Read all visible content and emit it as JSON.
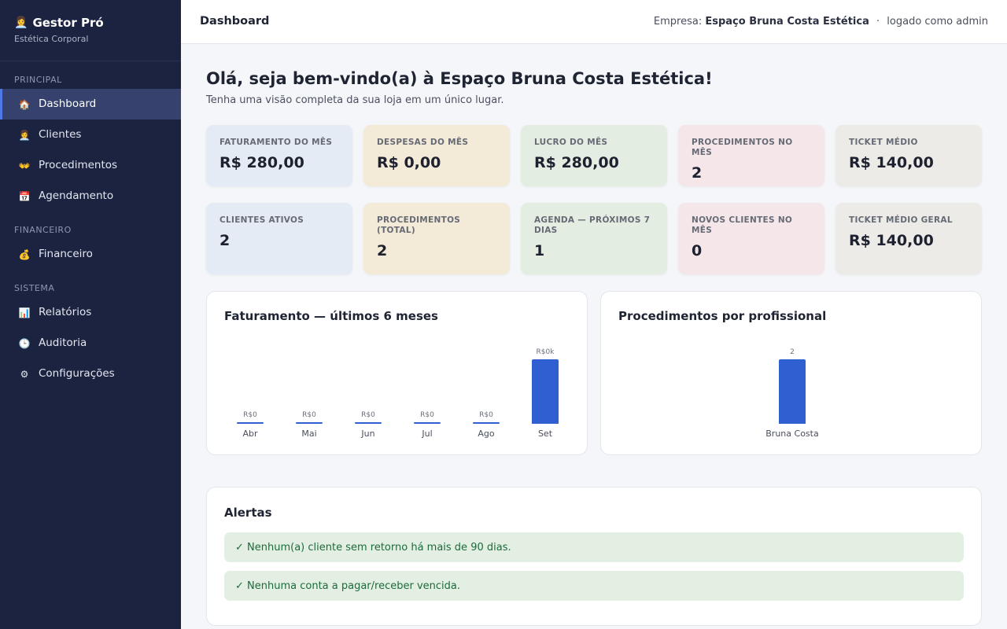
{
  "brand": {
    "icon": "👩‍💼",
    "title": "Gestor Pró",
    "subtitle": "Estética Corporal"
  },
  "sidebar": {
    "sections": [
      {
        "label": "PRINCIPAL"
      },
      {
        "label": "FINANCEIRO"
      },
      {
        "label": "SISTEMA"
      }
    ],
    "items": [
      {
        "label": "Dashboard",
        "icon": "🏠",
        "icon_name": "home-icon",
        "active": true
      },
      {
        "label": "Clientes",
        "icon": "👩‍💼",
        "icon_name": "clients-icon"
      },
      {
        "label": "Procedimentos",
        "icon": "👐",
        "icon_name": "procedures-icon"
      },
      {
        "label": "Agendamento",
        "icon": "📅",
        "icon_name": "calendar-icon"
      },
      {
        "label": "Financeiro",
        "icon": "💰",
        "icon_name": "money-bag-icon"
      },
      {
        "label": "Relatórios",
        "icon": "📊",
        "icon_name": "bar-chart-icon"
      },
      {
        "label": "Auditoria",
        "icon": "🕒",
        "icon_name": "clock-icon"
      },
      {
        "label": "Configurações",
        "icon": "⚙",
        "icon_name": "gear-icon"
      }
    ]
  },
  "topbar": {
    "title": "Dashboard",
    "company_prefix": "Empresa:",
    "company_name": "Espaço Bruna Costa Estética",
    "separator": "·",
    "logged_as": "logado como admin"
  },
  "welcome": {
    "title": "Olá, seja bem-vindo(a) à Espaço Bruna Costa Estética!",
    "subtitle": "Tenha uma visão completa da sua loja em um único lugar."
  },
  "stats_row1": [
    {
      "label": "FATURAMENTO DO MÊS",
      "value": "R$ 280,00"
    },
    {
      "label": "DESPESAS DO MÊS",
      "value": "R$ 0,00"
    },
    {
      "label": "LUCRO DO MÊS",
      "value": "R$ 280,00"
    },
    {
      "label": "PROCEDIMENTOS NO MÊS",
      "value": "2"
    },
    {
      "label": "TICKET MÉDIO",
      "value": "R$ 140,00"
    }
  ],
  "stats_row2": [
    {
      "label": "CLIENTES ATIVOS",
      "value": "2"
    },
    {
      "label": "PROCEDIMENTOS (TOTAL)",
      "value": "2"
    },
    {
      "label": "AGENDA — PRÓXIMOS 7 DIAS",
      "value": "1"
    },
    {
      "label": "NOVOS CLIENTES NO MÊS",
      "value": "0"
    },
    {
      "label": "TICKET MÉDIO GERAL",
      "value": "R$ 140,00"
    }
  ],
  "panels": {
    "revenue_title": "Faturamento — últimos 6 meses",
    "procedures_title": "Procedimentos por profissional",
    "alerts_title": "Alertas"
  },
  "chart_data": [
    {
      "type": "bar",
      "title": "Faturamento — últimos 6 meses",
      "categories": [
        "Abr",
        "Mai",
        "Jun",
        "Jul",
        "Ago",
        "Set"
      ],
      "values": [
        0,
        0,
        0,
        0,
        0,
        280
      ],
      "value_labels": [
        "R$0",
        "R$0",
        "R$0",
        "R$0",
        "R$0",
        "R$0k"
      ],
      "color": "#2f5fd1"
    },
    {
      "type": "bar",
      "title": "Procedimentos por profissional",
      "categories": [
        "Bruna Costa"
      ],
      "values": [
        2
      ],
      "value_labels": [
        "2"
      ],
      "color": "#2f5fd1"
    }
  ],
  "alerts": [
    "✓ Nenhum(a) cliente sem retorno há mais de 90 dias.",
    "✓ Nenhuma conta a pagar/receber vencida."
  ]
}
